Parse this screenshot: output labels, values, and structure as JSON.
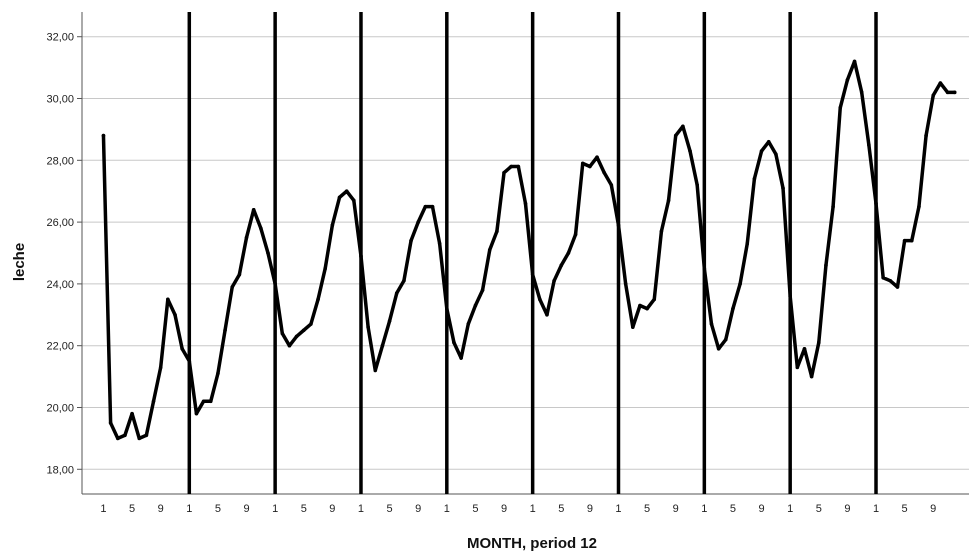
{
  "chart_data": {
    "type": "line",
    "title": "",
    "xlabel": "MONTH, period 12",
    "ylabel": "leche",
    "ylim": [
      17.2,
      32.8
    ],
    "yticks": [
      18,
      20,
      22,
      24,
      26,
      28,
      30,
      32
    ],
    "ytick_labels": [
      "18,00",
      "20,00",
      "22,00",
      "24,00",
      "26,00",
      "28,00",
      "30,00",
      "32,00"
    ],
    "grid": "horizontal",
    "x_tick_labels": [
      "1",
      "5",
      "9",
      "1",
      "5",
      "9",
      "1",
      "5",
      "9",
      "1",
      "5",
      "9",
      "1",
      "5",
      "9",
      "1",
      "5",
      "9",
      "1",
      "5",
      "9",
      "1",
      "5",
      "9",
      "1",
      "5",
      "9",
      "1",
      "5",
      "9"
    ],
    "x_tick_positions": [
      1,
      5,
      9,
      13,
      17,
      21,
      25,
      29,
      33,
      37,
      41,
      45,
      49,
      53,
      57,
      61,
      65,
      69,
      73,
      77,
      81,
      85,
      89,
      93,
      97,
      101,
      105,
      109,
      113,
      117
    ],
    "period_boundaries": [
      13,
      25,
      37,
      49,
      61,
      73,
      85,
      97,
      109
    ],
    "x_range": [
      -2,
      122
    ],
    "series": [
      {
        "values": [
          28.8,
          19.5,
          19.0,
          19.1,
          19.8,
          19.0,
          19.1,
          20.2,
          21.3,
          23.5,
          23.0,
          21.9,
          21.5,
          19.8,
          20.2,
          20.2,
          21.1,
          22.5,
          23.9,
          24.3,
          25.5,
          26.4,
          25.8,
          25.0,
          24.0,
          22.4,
          22.0,
          22.3,
          22.5,
          22.7,
          23.5,
          24.5,
          25.9,
          26.8,
          27.0,
          26.7,
          24.9,
          22.6,
          21.2,
          22.0,
          22.8,
          23.7,
          24.1,
          25.4,
          26.0,
          26.5,
          26.5,
          25.3,
          23.2,
          22.1,
          21.6,
          22.7,
          23.3,
          23.8,
          25.1,
          25.7,
          27.6,
          27.8,
          27.8,
          26.6,
          24.3,
          23.5,
          23.0,
          24.1,
          24.6,
          25.0,
          25.6,
          27.9,
          27.8,
          28.1,
          27.6,
          27.2,
          25.9,
          24.0,
          22.6,
          23.3,
          23.2,
          23.5,
          25.7,
          26.7,
          28.8,
          29.1,
          28.3,
          27.2,
          24.5,
          22.7,
          21.9,
          22.2,
          23.2,
          24.0,
          25.3,
          27.4,
          28.3,
          28.6,
          28.2,
          27.1,
          23.6,
          21.3,
          21.9,
          21.0,
          22.1,
          24.6,
          26.5,
          29.7,
          30.6,
          31.2,
          30.2,
          28.5,
          26.6,
          24.2,
          24.1,
          23.9,
          25.4,
          25.4,
          26.5,
          28.8,
          30.1,
          30.5,
          30.2,
          30.2
        ]
      }
    ],
    "colors": {
      "line": "#000000",
      "grid": "#c8c8c8",
      "axis": "#555555",
      "boundary": "#000000"
    }
  }
}
